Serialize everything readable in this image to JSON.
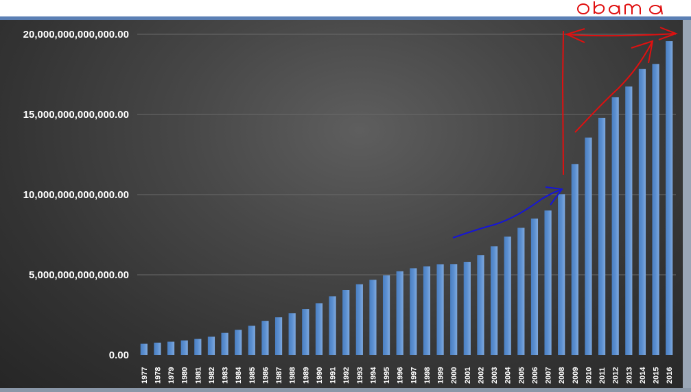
{
  "chart_data": {
    "type": "bar",
    "title": "",
    "xlabel": "",
    "ylabel": "",
    "ylim": [
      0,
      20000000000000
    ],
    "yticks": [
      {
        "value": 0,
        "label": "0.00"
      },
      {
        "value": 5000000000000,
        "label": "5,000,000,000,000.00"
      },
      {
        "value": 10000000000000,
        "label": "10,000,000,000,000.00"
      },
      {
        "value": 15000000000000,
        "label": "15,000,000,000,000.00"
      },
      {
        "value": 20000000000000,
        "label": "20,000,000,000,000.00"
      }
    ],
    "grid": true,
    "legend": "none",
    "categories": [
      "1977",
      "1978",
      "1979",
      "1980",
      "1981",
      "1982",
      "1983",
      "1984",
      "1985",
      "1986",
      "1987",
      "1988",
      "1989",
      "1990",
      "1991",
      "1992",
      "1993",
      "1994",
      "1995",
      "1996",
      "1997",
      "1998",
      "1999",
      "2000",
      "2001",
      "2002",
      "2003",
      "2004",
      "2005",
      "2006",
      "2007",
      "2008",
      "2009",
      "2010",
      "2011",
      "2012",
      "2013",
      "2014",
      "2015",
      "2016"
    ],
    "values": [
      700000000000,
      770000000000,
      830000000000,
      910000000000,
      1000000000000,
      1140000000000,
      1380000000000,
      1570000000000,
      1820000000000,
      2130000000000,
      2350000000000,
      2600000000000,
      2860000000000,
      3230000000000,
      3660000000000,
      4060000000000,
      4410000000000,
      4690000000000,
      4970000000000,
      5220000000000,
      5410000000000,
      5530000000000,
      5660000000000,
      5670000000000,
      5810000000000,
      6230000000000,
      6780000000000,
      7380000000000,
      7930000000000,
      8510000000000,
      9010000000000,
      10030000000000,
      11910000000000,
      13560000000000,
      14790000000000,
      16070000000000,
      16740000000000,
      17830000000000,
      18150000000000,
      19570000000000
    ],
    "bar_color": "#5b8fd0",
    "annotations": [
      {
        "kind": "handwritten-text",
        "text": "obama",
        "color": "#e01010"
      },
      {
        "kind": "handwritten-arrow",
        "color": "#1010d0"
      },
      {
        "kind": "handwritten-arrow",
        "color": "#e01010"
      },
      {
        "kind": "handwritten-double-arrow",
        "color": "#e01010"
      }
    ]
  }
}
